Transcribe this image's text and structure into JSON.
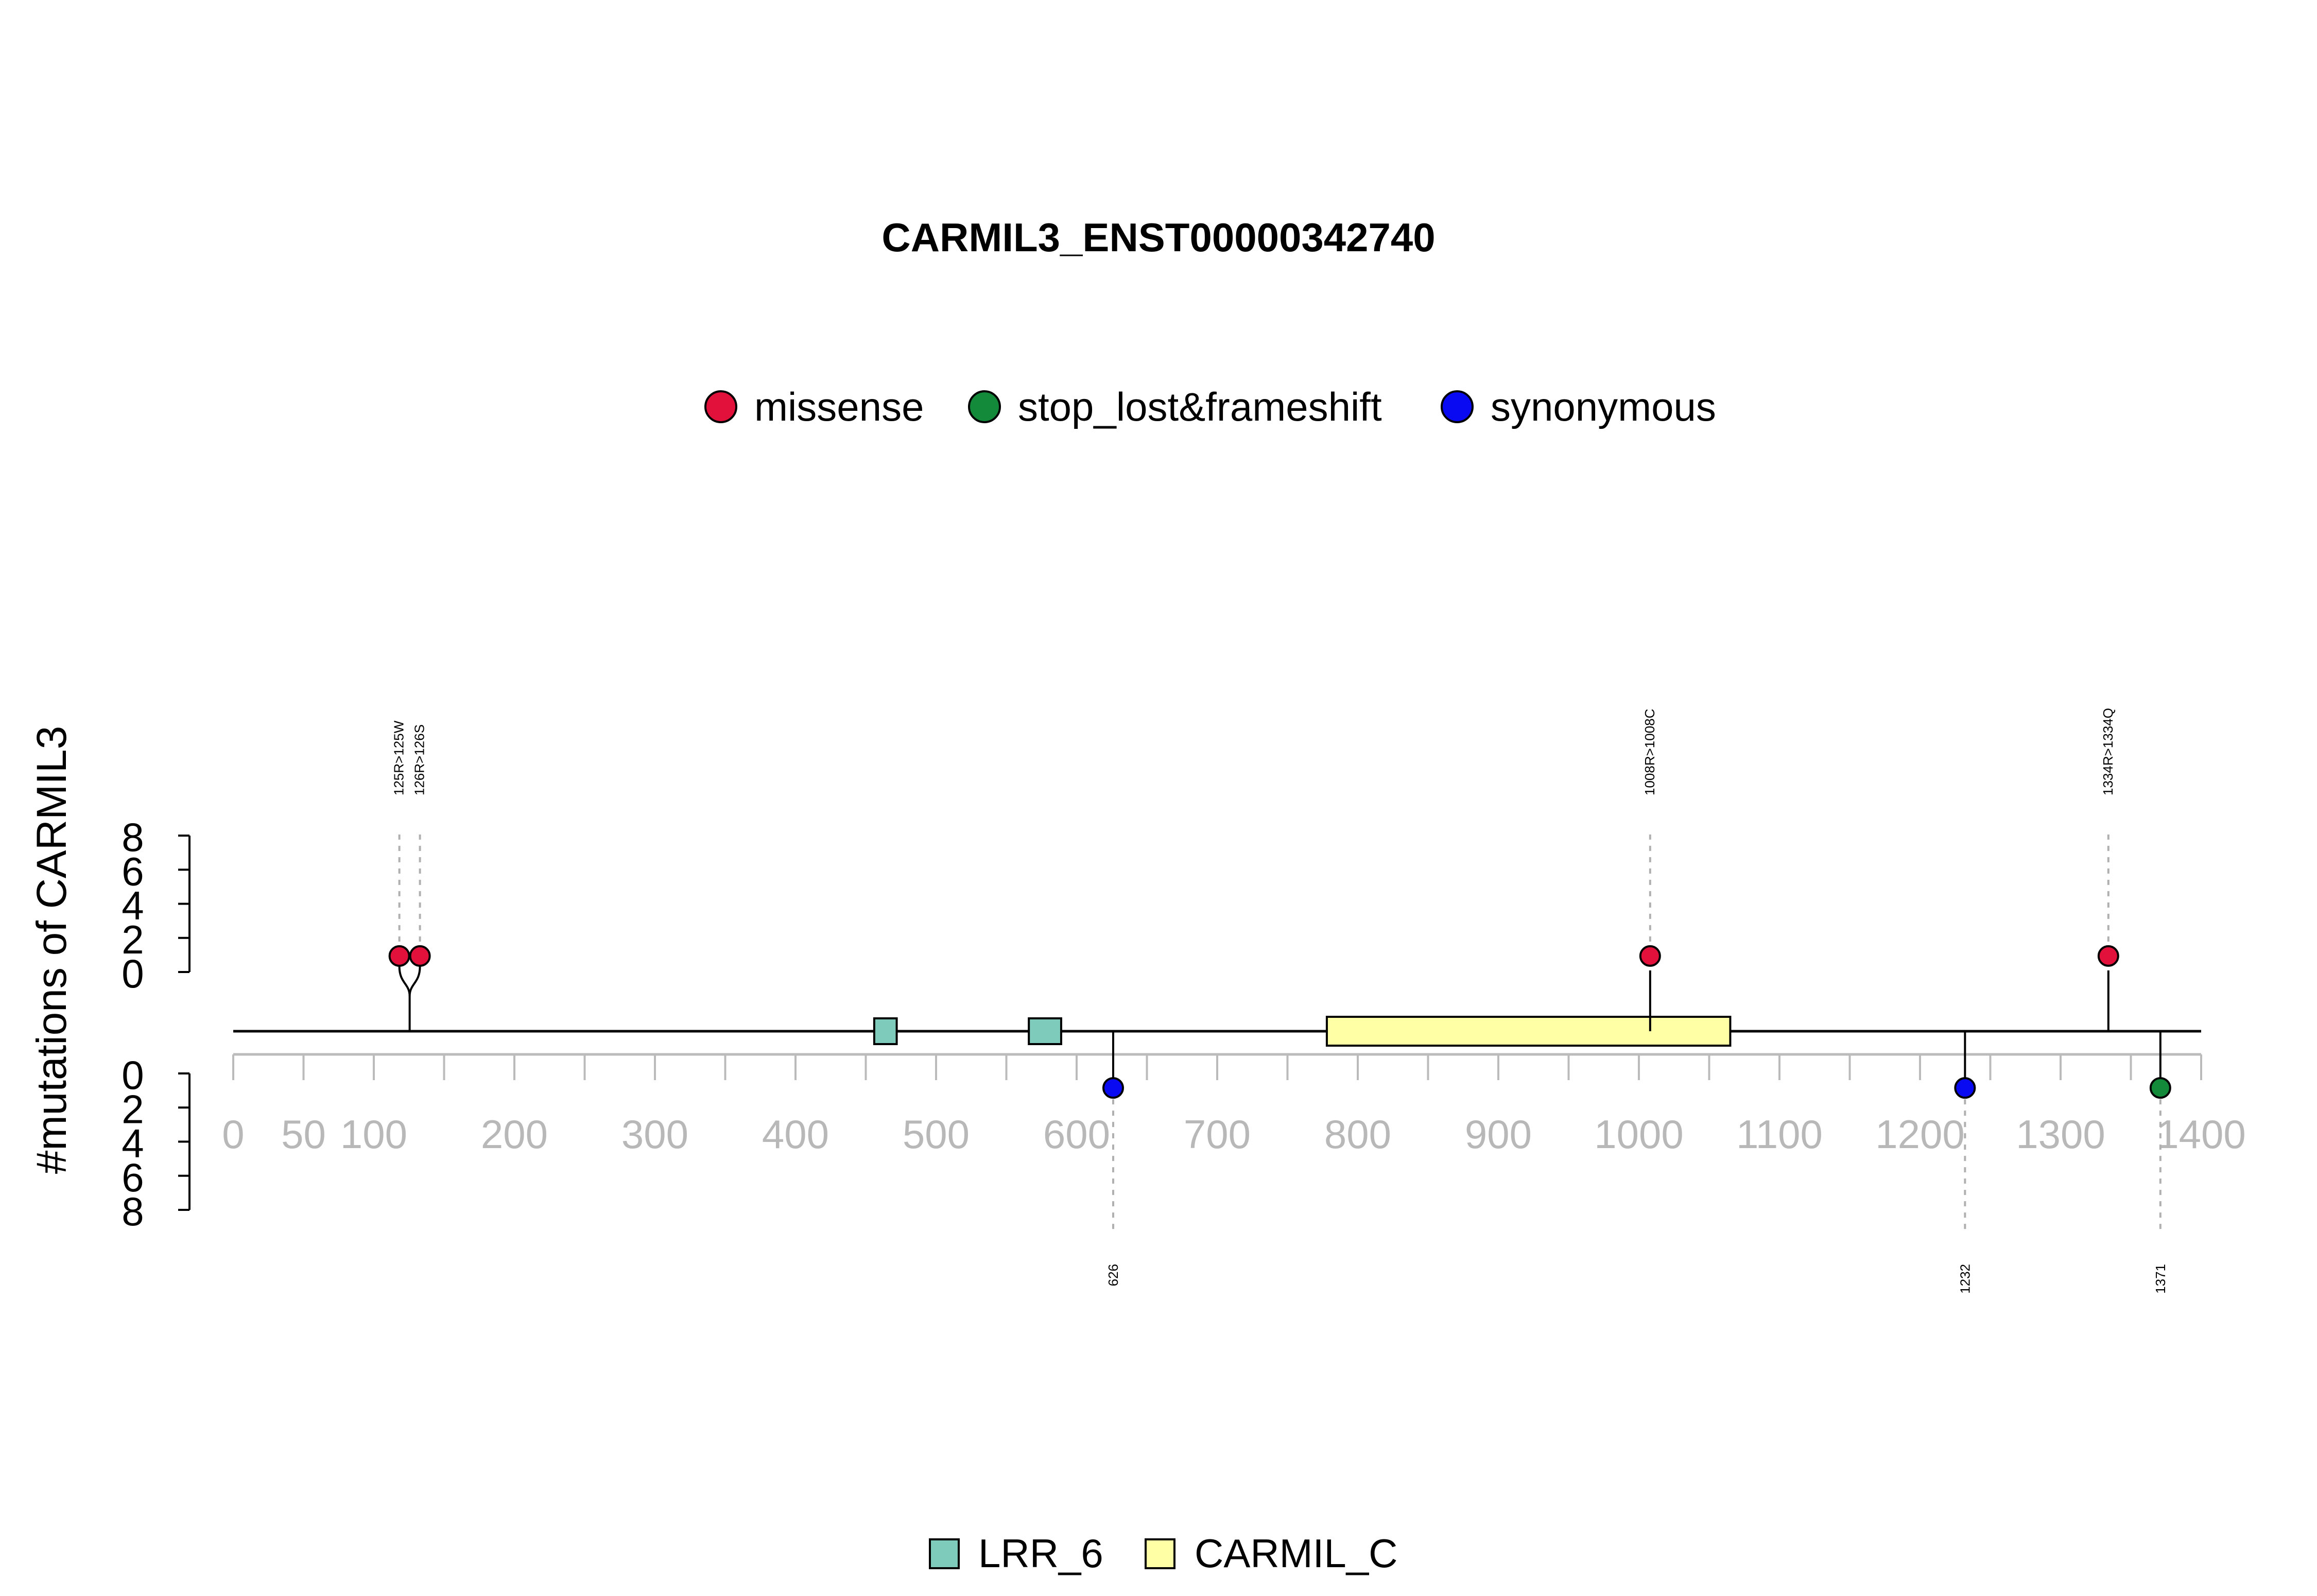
{
  "chart_data": {
    "type": "lollipop",
    "title": "CARMIL3_ENST00000342740",
    "ylabel": "#mutations of CARMIL3",
    "xlim": [
      0,
      1400
    ],
    "x_ticks": [
      0,
      50,
      100,
      200,
      300,
      400,
      500,
      600,
      700,
      800,
      900,
      1000,
      1100,
      1200,
      1300,
      1400
    ],
    "x_minor_ticks": [
      0,
      50,
      100,
      150,
      200,
      250,
      300,
      350,
      400,
      450,
      500,
      550,
      600,
      650,
      700,
      750,
      800,
      850,
      900,
      950,
      1000,
      1050,
      1100,
      1150,
      1200,
      1250,
      1300,
      1350,
      1400
    ],
    "y_ticks": [
      0,
      2,
      4,
      6,
      8
    ],
    "ylim": [
      0,
      8
    ],
    "legend": {
      "position": "top-center",
      "entries": [
        {
          "name": "missense",
          "color": "#e2113b"
        },
        {
          "name": "stop_lost&frameshift",
          "color": "#138a3a"
        },
        {
          "name": "synonymous",
          "color": "#0a0af2"
        }
      ]
    },
    "domain_legend": {
      "position": "bottom-center",
      "entries": [
        {
          "name": "LRR_6",
          "color": "#7ecbbb"
        },
        {
          "name": "CARMIL_C",
          "color": "#ffffa6"
        }
      ]
    },
    "protein_length": 1400,
    "domains": [
      {
        "name": "LRR_6",
        "start": 456,
        "end": 472,
        "color": "#7ecbbb"
      },
      {
        "name": "LRR_6",
        "start": 566,
        "end": 589,
        "color": "#7ecbbb"
      },
      {
        "name": "CARMIL_C",
        "start": 778,
        "end": 1065,
        "color": "#ffffa6"
      }
    ],
    "mutations": [
      {
        "position": 125,
        "label": "125R>125W",
        "type": "missense",
        "count": 1,
        "side": "top"
      },
      {
        "position": 126,
        "label": "126R>126S",
        "type": "missense",
        "count": 1,
        "side": "top"
      },
      {
        "position": 1008,
        "label": "1008R>1008C",
        "type": "missense",
        "count": 1,
        "side": "top"
      },
      {
        "position": 1334,
        "label": "1334R>1334Q",
        "type": "missense",
        "count": 1,
        "side": "top"
      },
      {
        "position": 626,
        "label": "626",
        "type": "synonymous",
        "count": 1,
        "side": "bottom"
      },
      {
        "position": 1232,
        "label": "1232",
        "type": "synonymous",
        "count": 1,
        "side": "bottom"
      },
      {
        "position": 1371,
        "label": "1371",
        "type": "stop_lost&frameshift",
        "count": 1,
        "side": "bottom"
      }
    ]
  }
}
